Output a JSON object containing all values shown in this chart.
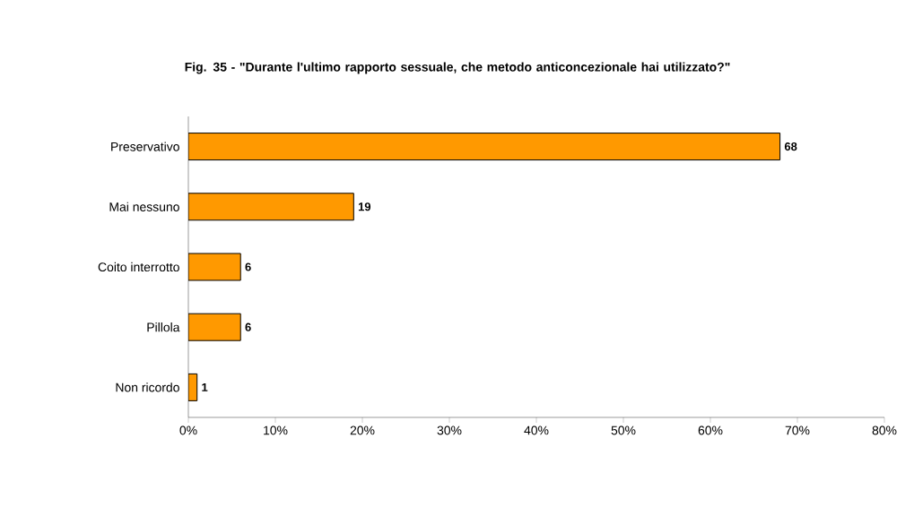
{
  "chart_data": {
    "type": "bar",
    "orientation": "horizontal",
    "title": "Fig. 35 - \"Durante l'ultimo rapporto sessuale, che metodo anticoncezionale hai utilizzato?\"",
    "categories": [
      "Preservativo",
      "Mai nessuno",
      "Coito interrotto",
      "Pillola",
      "Non ricordo"
    ],
    "values": [
      68,
      19,
      6,
      6,
      1
    ],
    "color": "#ff9900",
    "data_labels": true,
    "xlim": [
      0,
      80
    ],
    "xticks": [
      {
        "value": 0,
        "label": "0%"
      },
      {
        "value": 10,
        "label": "10%"
      },
      {
        "value": 20,
        "label": "20%"
      },
      {
        "value": 30,
        "label": "30%"
      },
      {
        "value": 40,
        "label": "40%"
      },
      {
        "value": 50,
        "label": "50%"
      },
      {
        "value": 60,
        "label": "60%"
      },
      {
        "value": 70,
        "label": "70%"
      },
      {
        "value": 80,
        "label": "80%"
      }
    ],
    "grid": false
  }
}
